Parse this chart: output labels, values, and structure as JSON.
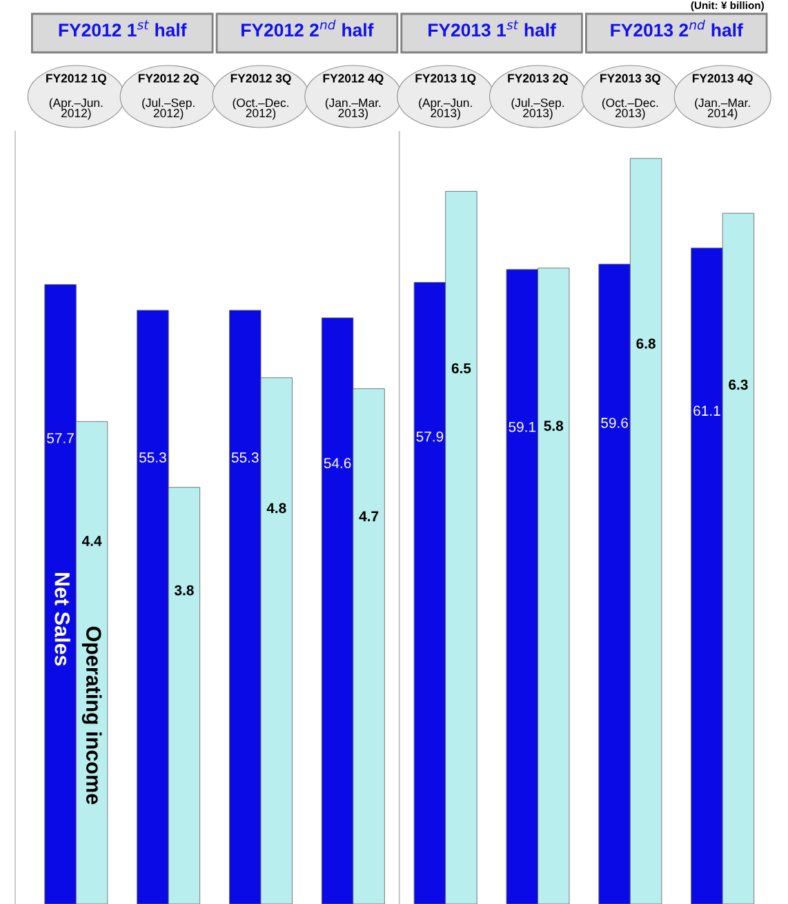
{
  "chart_data": {
    "type": "bar",
    "categories": [
      "FY2012 1Q\n(Apr.–Jun.\n2012)",
      "FY2012 2Q\n(Jul.–Sep.\n2012)",
      "FY2012 3Q\n(Oct.–Dec.\n2012)",
      "FY2012 4Q\n(Jan.–Mar.\n2013)",
      "FY2013 1Q\n(Apr.–Jun.\n2013)",
      "FY2013 2Q\n(Jul.–Sep.\n2013)",
      "FY2013 3Q\n(Oct.–Dec.\n2013)",
      "FY2013 4Q\n(Jan.–Mar.\n2014)"
    ],
    "series": [
      {
        "name": "Net Sales",
        "color": "#0a0ae6",
        "values": [
          57.7,
          55.3,
          55.3,
          54.6,
          57.9,
          59.1,
          59.6,
          61.1
        ]
      },
      {
        "name": "Operating income",
        "color": "#b9eeee",
        "axis": "y2",
        "values": [
          4.4,
          3.8,
          4.8,
          4.7,
          6.5,
          5.8,
          6.8,
          6.3
        ]
      }
    ],
    "ylim": [
      0,
      72
    ],
    "y2lim": [
      0,
      7.05
    ],
    "tick_labels": "x",
    "data_labels": true,
    "legend": false,
    "annotations": [
      "(Unit: ¥ billion)",
      "FY2012 1$^{st}$ half",
      "FY2012 2$^{nd}$ half",
      "FY2013 1$^{st}$ half",
      "FY2013 2$^{nd}$ half"
    ]
  }
}
